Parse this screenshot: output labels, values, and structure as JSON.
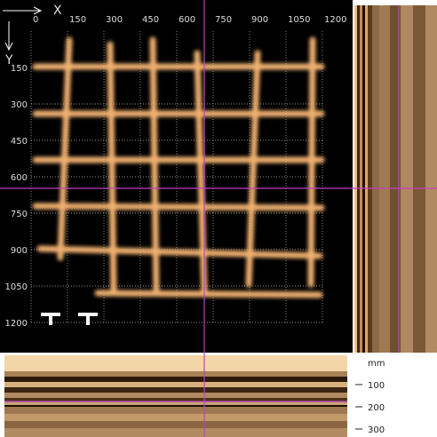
{
  "plan_view": {
    "x_label": "X",
    "y_label": "Y",
    "x_ticks": [
      0,
      150,
      300,
      450,
      600,
      750,
      900,
      1050,
      1200
    ],
    "y_ticks": [
      150,
      300,
      450,
      600,
      750,
      900,
      1050,
      1200
    ]
  },
  "depth_scale": {
    "unit": "mm",
    "ticks": [
      100,
      200,
      300
    ]
  }
}
